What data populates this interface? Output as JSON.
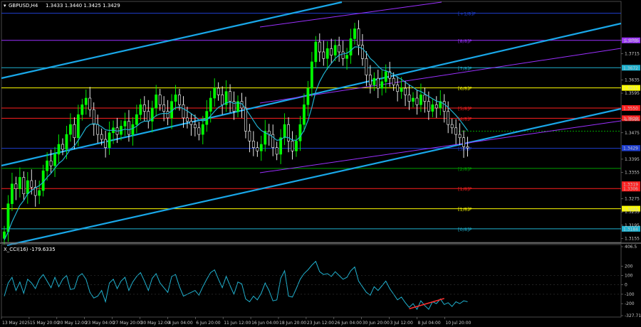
{
  "window": {
    "symbol_title": "GBPUSD,H4",
    "ohlc": "1.3433 1.3440 1.3425 1.3429",
    "indicator_title": "X_CCI(16) -179.6335"
  },
  "colors": {
    "background": "#000000",
    "bull_candle": "#00ff00",
    "bear_candle": "#ffffff",
    "ma": "#20b2d0",
    "channel_outer": "#19a7e8",
    "channel_inner": "#9b30ff",
    "cci_line": "#20b2d0",
    "divergence": "#ff3030"
  },
  "chart_data": [
    {
      "type": "candlestick",
      "symbol": "GBPUSD",
      "timeframe": "H4",
      "ylim": [
        1.3145,
        1.386
      ],
      "price_ticks": [
        "1.3755",
        "1.3715",
        "1.3635",
        "1.3595",
        "1.3515",
        "1.3475",
        "1.3395",
        "1.3355",
        "1.3275",
        "1.3235",
        "1.3195",
        "1.3155"
      ],
      "x_ticks": [
        "13 May 2025",
        "15 May 20:00",
        "20 May 12:00",
        "23 May 04:00",
        "27 May 20:00",
        "30 May 12:00",
        "4 Jun 04:00",
        "6 Jun 20:00",
        "11 Jun 12:00",
        "16 Jun 04:00",
        "18 Jun 20:00",
        "23 Jun 12:00",
        "26 Jun 04:00",
        "30 Jun 20:00",
        "3 Jul 12:00",
        "8 Jul 04:00",
        "10 Jul 20:00"
      ],
      "current_price": "1.3429",
      "close_series": [
        1.3175,
        1.326,
        1.332,
        1.3305,
        1.334,
        1.329,
        1.333,
        1.331,
        1.3285,
        1.33,
        1.336,
        1.339,
        1.3375,
        1.341,
        1.344,
        1.3425,
        1.347,
        1.35,
        1.346,
        1.353,
        1.356,
        1.358,
        1.3545,
        1.35,
        1.347,
        1.3455,
        1.343,
        1.3475,
        1.349,
        1.347,
        1.3495,
        1.351,
        1.347,
        1.35,
        1.353,
        1.356,
        1.354,
        1.351,
        1.355,
        1.359,
        1.356,
        1.354,
        1.352,
        1.357,
        1.359,
        1.356,
        1.352,
        1.351,
        1.35,
        1.349,
        1.347,
        1.35,
        1.354,
        1.358,
        1.361,
        1.359,
        1.356,
        1.36,
        1.357,
        1.354,
        1.357,
        1.355,
        1.348,
        1.345,
        1.343,
        1.342,
        1.344,
        1.348,
        1.347,
        1.343,
        1.341,
        1.346,
        1.35,
        1.345,
        1.342,
        1.345,
        1.35,
        1.356,
        1.361,
        1.369,
        1.375,
        1.372,
        1.37,
        1.373,
        1.371,
        1.374,
        1.372,
        1.37,
        1.371,
        1.376,
        1.379,
        1.374,
        1.37,
        1.365,
        1.362,
        1.364,
        1.361,
        1.363,
        1.366,
        1.364,
        1.362,
        1.36,
        1.361,
        1.359,
        1.357,
        1.358,
        1.356,
        1.359,
        1.357,
        1.354,
        1.356,
        1.355,
        1.357,
        1.354,
        1.35,
        1.349,
        1.347,
        1.346,
        1.3433,
        1.3429
      ],
      "ma_series": [
        1.315,
        1.3175,
        1.3205,
        1.323,
        1.3255,
        1.327,
        1.329,
        1.33,
        1.3308,
        1.3315,
        1.3325,
        1.334,
        1.3352,
        1.3368,
        1.3382,
        1.3392,
        1.3408,
        1.3425,
        1.3435,
        1.3452,
        1.347,
        1.349,
        1.35,
        1.3503,
        1.35,
        1.3493,
        1.3484,
        1.3482,
        1.3483,
        1.348,
        1.3482,
        1.3486,
        1.3484,
        1.3488,
        1.3495,
        1.3505,
        1.351,
        1.351,
        1.3517,
        1.3527,
        1.3532,
        1.3534,
        1.3533,
        1.3541,
        1.3551,
        1.3553,
        1.3548,
        1.3541,
        1.3533,
        1.3524,
        1.3514,
        1.3511,
        1.3514,
        1.3526,
        1.354,
        1.3552,
        1.3558,
        1.3566,
        1.3568,
        1.3564,
        1.3566,
        1.3563,
        1.3548,
        1.353,
        1.3512,
        1.3494,
        1.3482,
        1.3475,
        1.347,
        1.3462,
        1.3452,
        1.3454,
        1.3462,
        1.346,
        1.3453,
        1.3452,
        1.3463,
        1.3482,
        1.3512,
        1.3552,
        1.36,
        1.363,
        1.3652,
        1.367,
        1.3685,
        1.37,
        1.371,
        1.3714,
        1.3716,
        1.3724,
        1.3735,
        1.3735,
        1.373,
        1.3717,
        1.37,
        1.369,
        1.3677,
        1.3666,
        1.3663,
        1.3658,
        1.3652,
        1.3643,
        1.3637,
        1.3628,
        1.362,
        1.3613,
        1.3604,
        1.36,
        1.3593,
        1.3585,
        1.3578,
        1.3571,
        1.3568,
        1.3562,
        1.3552,
        1.354,
        1.3528,
        1.3514,
        1.3498,
        1.3482
      ],
      "murray_levels": [
        {
          "label": "[+1/8]P",
          "price": 1.3837,
          "value": "",
          "color": "#1f3fd0"
        },
        {
          "label": "[8/8]P",
          "price": 1.3755,
          "value": "1.3755",
          "color": "#9b30ff"
        },
        {
          "label": "[7/8]P",
          "price": 1.3672,
          "value": "1.3672",
          "color": "#20b2d0"
        },
        {
          "label": "[6/8]P",
          "price": 1.3611,
          "value": "1.3611",
          "color": "#ffff00"
        },
        {
          "label": "[5/8]P",
          "price": 1.355,
          "value": "1.3550",
          "color": "#ff2020"
        },
        {
          "label": "[4/8]P",
          "price": 1.3519,
          "value": "1.3519",
          "color": "#ff2020"
        },
        {
          "label": "[3/8]P",
          "price": 1.3428,
          "value": "1.3428",
          "color": "#1f3fd0"
        },
        {
          "label": "[2/8]P",
          "price": 1.3367,
          "value": "",
          "color": "#00a000"
        },
        {
          "label": "[1/8]P",
          "price": 1.3306,
          "value": "1.3306",
          "color": "#ff2020"
        },
        {
          "label": "[1/8]P",
          "price": 1.3245,
          "value": "1.3245",
          "color": "#ffff00"
        },
        {
          "label": "[0/8]P",
          "price": 1.3184,
          "value": "1.3184",
          "color": "#20b2d0"
        }
      ],
      "extra_level": {
        "price": 1.348,
        "value": "1.3480",
        "color": "#00a000"
      },
      "price_box_red": "1.3319"
    },
    {
      "type": "line",
      "name": "X_CCI(16)",
      "ylim": [
        -327.7,
        406.5
      ],
      "y_ticks": [
        "406.5",
        "200",
        "100",
        "0",
        "-100",
        "-200",
        "-327.719"
      ],
      "values": [
        -120,
        20,
        80,
        -60,
        30,
        -90,
        60,
        20,
        -40,
        60,
        110,
        40,
        -30,
        80,
        -20,
        60,
        100,
        -50,
        -40,
        90,
        120,
        60,
        -80,
        -140,
        -120,
        -60,
        -180,
        20,
        60,
        -40,
        40,
        80,
        -60,
        30,
        90,
        130,
        40,
        -60,
        70,
        120,
        20,
        -30,
        -80,
        90,
        110,
        -20,
        -120,
        -100,
        -80,
        -60,
        -110,
        -20,
        60,
        130,
        160,
        60,
        -30,
        90,
        -10,
        -100,
        30,
        10,
        -150,
        -180,
        -120,
        -160,
        -90,
        20,
        -60,
        -170,
        -160,
        70,
        150,
        -120,
        -130,
        -40,
        60,
        120,
        160,
        210,
        250,
        140,
        110,
        120,
        90,
        140,
        100,
        60,
        80,
        150,
        190,
        40,
        -20,
        -80,
        -110,
        -20,
        -60,
        -10,
        40,
        -40,
        -100,
        -160,
        -130,
        -190,
        -240,
        -200,
        -260,
        -170,
        -220,
        -260,
        -180,
        -200,
        -150,
        -210,
        -190,
        -230,
        -180,
        -200,
        -170,
        -180
      ]
    }
  ]
}
